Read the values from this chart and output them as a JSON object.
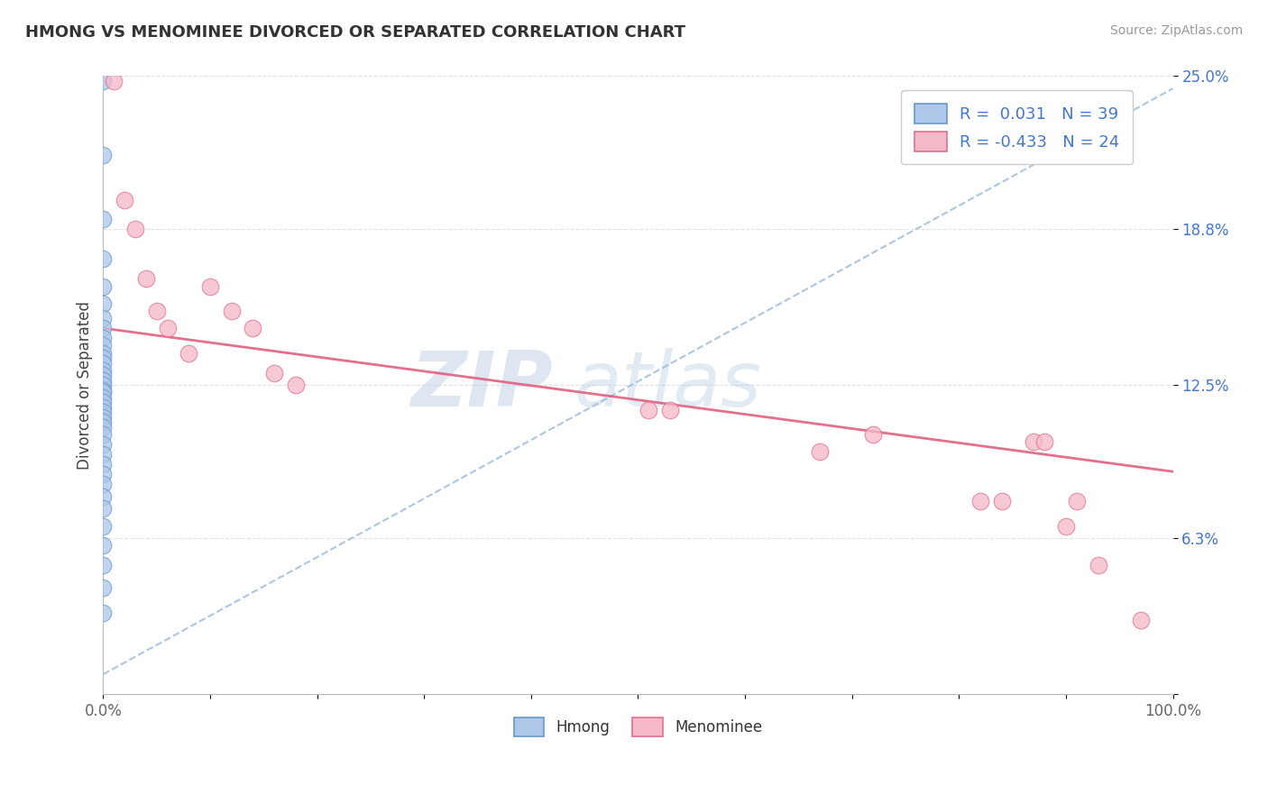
{
  "title": "HMONG VS MENOMINEE DIVORCED OR SEPARATED CORRELATION CHART",
  "source": "Source: ZipAtlas.com",
  "ylabel": "Divorced or Separated",
  "watermark_zip": "ZIP",
  "watermark_atlas": "atlas",
  "xlim": [
    0,
    1.0
  ],
  "ylim": [
    0,
    0.25
  ],
  "ytick_vals": [
    0.0,
    0.063,
    0.125,
    0.188,
    0.25
  ],
  "ytick_labels": [
    "",
    "6.3%",
    "12.5%",
    "18.8%",
    "25.0%"
  ],
  "xtick_labels": [
    "0.0%",
    "",
    "",
    "",
    "",
    "",
    "",
    "",
    "",
    "",
    "100.0%"
  ],
  "hmong_color": "#aec6e8",
  "menominee_color": "#f5b8c8",
  "hmong_edge": "#6699cc",
  "menominee_edge": "#e07090",
  "trendline_hmong_color": "#99b8d8",
  "trendline_menominee_color": "#e06080",
  "background_color": "#ffffff",
  "grid_color": "#e0e0e0",
  "R_hmong": 0.031,
  "N_hmong": 39,
  "R_menominee": -0.433,
  "N_menominee": 24,
  "hmong_y": [
    0.248,
    0.218,
    0.192,
    0.176,
    0.165,
    0.158,
    0.152,
    0.148,
    0.144,
    0.141,
    0.138,
    0.136,
    0.134,
    0.131,
    0.129,
    0.127,
    0.125,
    0.123,
    0.122,
    0.12,
    0.118,
    0.116,
    0.114,
    0.112,
    0.11,
    0.108,
    0.105,
    0.101,
    0.097,
    0.093,
    0.089,
    0.085,
    0.08,
    0.075,
    0.068,
    0.06,
    0.052,
    0.043,
    0.033
  ],
  "menominee_x_near0": [
    0.01,
    0.02,
    0.03,
    0.04,
    0.05,
    0.06,
    0.08,
    0.1,
    0.12,
    0.14,
    0.16,
    0.18
  ],
  "menominee_y_near0": [
    0.248,
    0.2,
    0.188,
    0.168,
    0.155,
    0.148,
    0.138,
    0.165,
    0.155,
    0.148,
    0.13,
    0.125
  ],
  "menominee_x_far": [
    0.51,
    0.53,
    0.67,
    0.72,
    0.82,
    0.84,
    0.87,
    0.88,
    0.9,
    0.91,
    0.93,
    0.97
  ],
  "menominee_y_far": [
    0.115,
    0.115,
    0.098,
    0.105,
    0.078,
    0.078,
    0.102,
    0.102,
    0.068,
    0.078,
    0.052,
    0.03
  ],
  "hmong_trendline": [
    0.0,
    0.008,
    1.0,
    0.245
  ],
  "menominee_trendline": [
    0.0,
    0.148,
    1.0,
    0.09
  ]
}
